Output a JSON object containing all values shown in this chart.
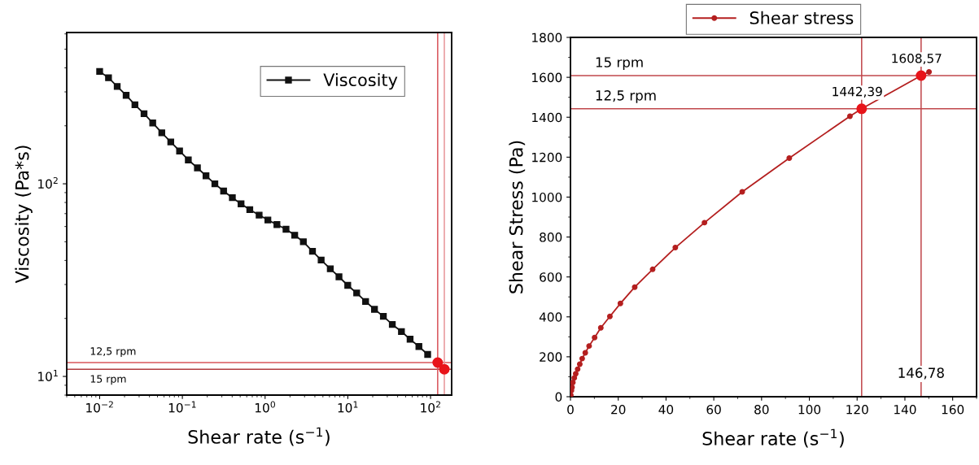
{
  "chart_data": [
    {
      "type": "line",
      "xlabel": "Shear rate (s$^{−1}$)",
      "ylabel": "Viscosity (Pa*s)",
      "log": "xy",
      "xlim": [
        0.004,
        180
      ],
      "ylim": [
        8,
        610
      ],
      "xticks": [
        {
          "value": 0.01,
          "label": "10$^{−2}$"
        },
        {
          "value": 0.1,
          "label": "10$^{−1}$"
        },
        {
          "value": 1,
          "label": "10$^{0}$"
        },
        {
          "value": 10,
          "label": "10$^{1}$"
        },
        {
          "value": 100,
          "label": "10$^{2}$"
        }
      ],
      "yticks": [
        {
          "value": 10,
          "label": "10$^{1}$"
        },
        {
          "value": 100,
          "label": "10$^{2}$"
        }
      ],
      "grid": false,
      "legend": "top right",
      "series": [
        {
          "name": "Viscosity",
          "color": "#111111",
          "marker": "square",
          "x": [
            0.01,
            0.0128,
            0.0163,
            0.0209,
            0.0267,
            0.0344,
            0.0438,
            0.0564,
            0.0724,
            0.0925,
            0.118,
            0.152,
            0.193,
            0.247,
            0.315,
            0.402,
            0.512,
            0.653,
            0.847,
            1.08,
            1.39,
            1.79,
            2.28,
            2.9,
            3.74,
            4.76,
            6.14,
            7.82,
            9.98,
            12.8,
            16.4,
            21.0,
            26.9,
            34.5,
            44.5,
            56.6,
            72.3,
            92.3
          ],
          "values": [
            383,
            355,
            320,
            288,
            257,
            231,
            207,
            184,
            165,
            148,
            133,
            121,
            110,
            100,
            91.7,
            84.7,
            78.7,
            73.4,
            68.8,
            64.9,
            61.4,
            58.1,
            54.1,
            50.0,
            44.6,
            40.2,
            36.2,
            32.9,
            29.7,
            27.1,
            24.5,
            22.3,
            20.5,
            18.6,
            17.1,
            15.6,
            14.3,
            13.0
          ]
        },
        {
          "type": "scatter",
          "color": "#e8141a",
          "marker": "circle",
          "x": [
            122,
            146.78
          ],
          "values": [
            11.8,
            10.9
          ]
        }
      ],
      "ref_lines": [
        {
          "axis": "y",
          "value": 11.8,
          "label": "12,5 rpm",
          "color": "#d9545a"
        },
        {
          "axis": "y",
          "value": 10.9,
          "label": "15 rpm",
          "color": "#b03a3e"
        },
        {
          "axis": "x",
          "value": 122,
          "color": "#d9545a"
        },
        {
          "axis": "x",
          "value": 146.78,
          "color": "#e89598"
        }
      ]
    },
    {
      "type": "line",
      "xlabel": "Shear rate (s$^{−1}$)",
      "ylabel": "Shear Stress (Pa)",
      "xlim": [
        0,
        170
      ],
      "ylim": [
        0,
        1800
      ],
      "xticks": [
        0,
        20,
        40,
        60,
        80,
        100,
        120,
        140,
        160
      ],
      "yticks": [
        0,
        200,
        400,
        600,
        800,
        1000,
        1200,
        1400,
        1600,
        1800
      ],
      "grid": false,
      "legend": "top",
      "series": [
        {
          "name": "Shear stress",
          "color": "#b41f1f",
          "marker": "circle",
          "x": [
            0.13,
            0.4,
            0.65,
            1.0,
            1.6,
            2.2,
            3.0,
            3.9,
            4.9,
            6.2,
            7.8,
            10.1,
            12.7,
            16.5,
            20.9,
            26.9,
            34.4,
            43.9,
            56.1,
            71.9,
            91.6,
            117.0,
            121.9,
            146.78,
            150.1
          ],
          "values": [
            8,
            31,
            47,
            71,
            94,
            115,
            138,
            163,
            191,
            220,
            254,
            296,
            345,
            402,
            467,
            549,
            638,
            747,
            872,
            1026,
            1195,
            1405,
            1442.39,
            1608.57,
            1627
          ]
        },
        {
          "type": "scatter",
          "color": "#e8141a",
          "marker": "circle",
          "x": [
            121.9,
            146.78
          ],
          "values": [
            1442.39,
            1608.57
          ]
        }
      ],
      "ref_lines": [
        {
          "axis": "y",
          "value": 1608.57,
          "label": "15 rpm",
          "color": "#c0474b"
        },
        {
          "axis": "y",
          "value": 1442.39,
          "label": "12,5 rpm",
          "color": "#c0474b"
        },
        {
          "axis": "x",
          "value": 121.9,
          "color": "#c0474b"
        },
        {
          "axis": "x",
          "value": 146.78,
          "label": "146,78",
          "color": "#c0474b"
        }
      ],
      "annotations": [
        {
          "text": "1442,39",
          "x": 121.9,
          "y": 1442.39
        },
        {
          "text": "1608,57",
          "x": 146.78,
          "y": 1608.57
        }
      ]
    }
  ]
}
